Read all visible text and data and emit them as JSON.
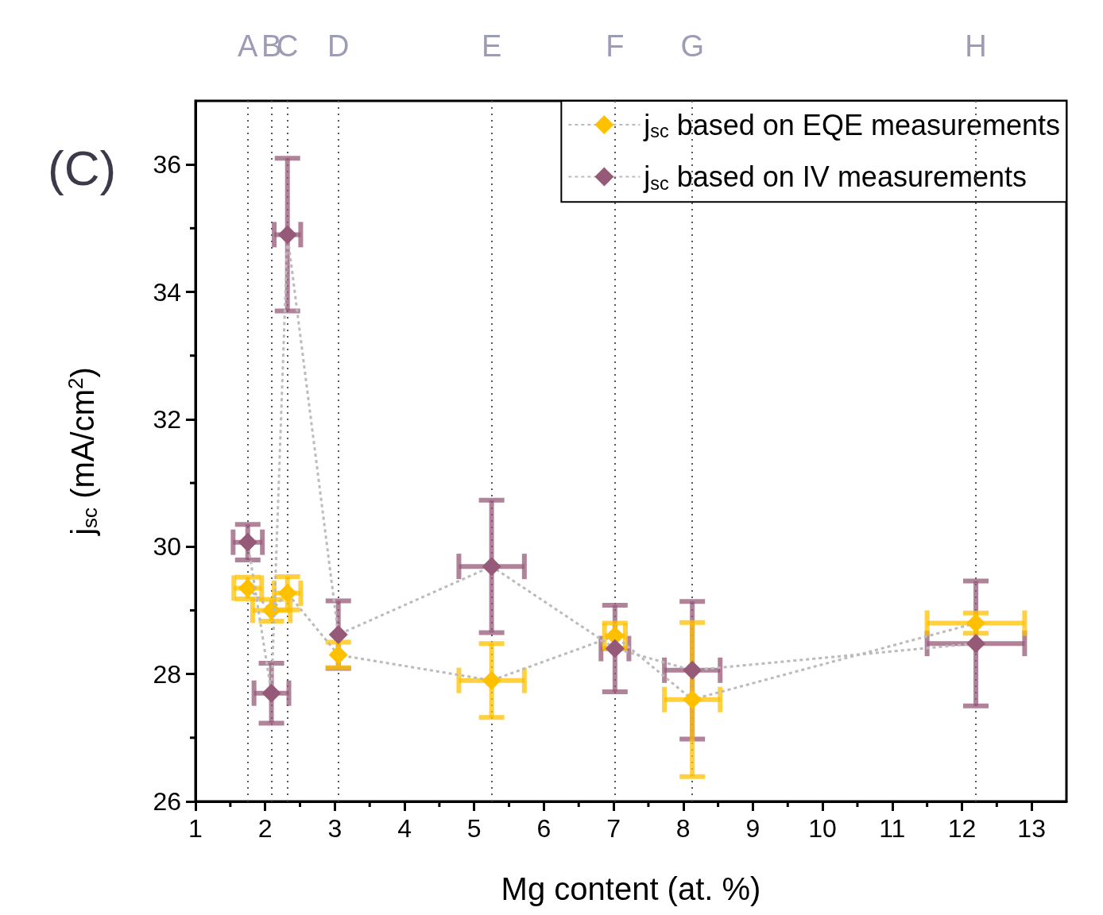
{
  "chart_data": {
    "type": "line",
    "xlabel": "Mg content (at. %)",
    "ylabel": "j$_{sc}$ (mA/cm$^{2}$)",
    "annotations": [
      "(C)"
    ],
    "xlim": [
      1,
      13.5
    ],
    "xticks": [
      1,
      2,
      3,
      4,
      5,
      6,
      7,
      8,
      9,
      10,
      11,
      12,
      13
    ],
    "ylim": [
      26,
      37
    ],
    "yticks": [
      26,
      28,
      30,
      32,
      34,
      36
    ],
    "x": [
      1.75,
      2.09,
      2.32,
      3.05,
      5.25,
      7.02,
      8.13,
      12.2
    ],
    "series": [
      {
        "name": "j$_{sc}$ based on EQE measurements",
        "color": "#ffc000",
        "values": [
          29.35,
          29.0,
          29.27,
          28.3,
          27.9,
          28.6,
          27.6,
          28.8
        ],
        "errors": [
          0.17,
          0.17,
          0.26,
          0.2,
          0.58,
          0.2,
          1.21,
          0.16
        ],
        "xerrors": [
          0.2,
          0.27,
          0.19,
          null,
          0.47,
          0.15,
          0.4,
          0.7
        ]
      },
      {
        "name": "j$_{sc}$ based on IV measurements",
        "color": "#965a78",
        "values": [
          30.07,
          27.7,
          34.9,
          28.62,
          29.69,
          28.4,
          28.06,
          28.48
        ],
        "errors": [
          0.28,
          0.47,
          1.2,
          0.53,
          1.04,
          0.68,
          1.08,
          0.98
        ],
        "xerrors": [
          0.21,
          0.25,
          0.19,
          null,
          0.47,
          0.2,
          0.4,
          0.7
        ]
      }
    ],
    "ref_lines": [
      {
        "axis": "x",
        "value": 1.75,
        "label": "A",
        "color": "#555566",
        "line_style": "dotted"
      },
      {
        "axis": "x",
        "value": 2.09,
        "label": "B",
        "color": "#555566",
        "line_style": "dotted"
      },
      {
        "axis": "x",
        "value": 2.32,
        "label": "C",
        "color": "#555566",
        "line_style": "dotted"
      },
      {
        "axis": "x",
        "value": 3.05,
        "label": "D",
        "color": "#555566",
        "line_style": "dotted"
      },
      {
        "axis": "x",
        "value": 5.25,
        "label": "E",
        "color": "#555566",
        "line_style": "dotted"
      },
      {
        "axis": "x",
        "value": 7.02,
        "label": "F",
        "color": "#555566",
        "line_style": "dotted"
      },
      {
        "axis": "x",
        "value": 8.13,
        "label": "G",
        "color": "#555566",
        "line_style": "dotted"
      },
      {
        "axis": "x",
        "value": 12.2,
        "label": "H",
        "color": "#555566",
        "line_style": "dotted"
      }
    ],
    "legend": "top right",
    "grid": false,
    "marker": "diamond",
    "line_style": "dashed"
  }
}
